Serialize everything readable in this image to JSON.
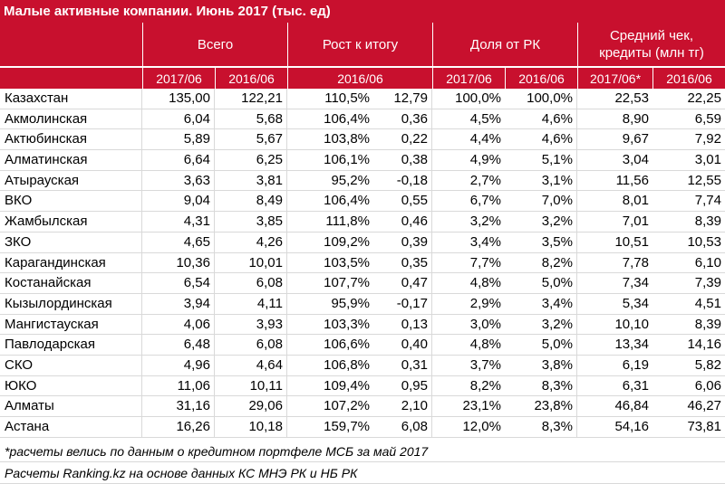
{
  "title": "Малые активные компании. Июнь 2017 (тыс. ед)",
  "groups": {
    "total": "Всего",
    "growth": "Рост к итогу",
    "share": "Доля от РК",
    "avg": "Средний чек, кредиты (млн тг)"
  },
  "subheaders": {
    "total_a": "2017/06",
    "total_b": "2016/06",
    "growth": "2016/06",
    "share_a": "2017/06",
    "share_b": "2016/06",
    "avg_a": "2017/06*",
    "avg_b": "2016/06"
  },
  "rows": [
    [
      "Казахстан",
      "135,00",
      "122,21",
      "110,5%",
      "12,79",
      "100,0%",
      "100,0%",
      "22,53",
      "22,25"
    ],
    [
      "Акмолинская",
      "6,04",
      "5,68",
      "106,4%",
      "0,36",
      "4,5%",
      "4,6%",
      "8,90",
      "6,59"
    ],
    [
      "Актюбинская",
      "5,89",
      "5,67",
      "103,8%",
      "0,22",
      "4,4%",
      "4,6%",
      "9,67",
      "7,92"
    ],
    [
      "Алматинская",
      "6,64",
      "6,25",
      "106,1%",
      "0,38",
      "4,9%",
      "5,1%",
      "3,04",
      "3,01"
    ],
    [
      "Атырауская",
      "3,63",
      "3,81",
      "95,2%",
      "-0,18",
      "2,7%",
      "3,1%",
      "11,56",
      "12,55"
    ],
    [
      "ВКО",
      "9,04",
      "8,49",
      "106,4%",
      "0,55",
      "6,7%",
      "7,0%",
      "8,01",
      "7,74"
    ],
    [
      "Жамбылская",
      "4,31",
      "3,85",
      "111,8%",
      "0,46",
      "3,2%",
      "3,2%",
      "7,01",
      "8,39"
    ],
    [
      "ЗКО",
      "4,65",
      "4,26",
      "109,2%",
      "0,39",
      "3,4%",
      "3,5%",
      "10,51",
      "10,53"
    ],
    [
      "Карагандинская",
      "10,36",
      "10,01",
      "103,5%",
      "0,35",
      "7,7%",
      "8,2%",
      "7,78",
      "6,10"
    ],
    [
      "Костанайская",
      "6,54",
      "6,08",
      "107,7%",
      "0,47",
      "4,8%",
      "5,0%",
      "7,34",
      "7,39"
    ],
    [
      "Кызылординская",
      "3,94",
      "4,11",
      "95,9%",
      "-0,17",
      "2,9%",
      "3,4%",
      "5,34",
      "4,51"
    ],
    [
      "Мангистауская",
      "4,06",
      "3,93",
      "103,3%",
      "0,13",
      "3,0%",
      "3,2%",
      "10,10",
      "8,39"
    ],
    [
      "Павлодарская",
      "6,48",
      "6,08",
      "106,6%",
      "0,40",
      "4,8%",
      "5,0%",
      "13,34",
      "14,16"
    ],
    [
      "СКО",
      "4,96",
      "4,64",
      "106,8%",
      "0,31",
      "3,7%",
      "3,8%",
      "6,19",
      "5,82"
    ],
    [
      "ЮКО",
      "11,06",
      "10,11",
      "109,4%",
      "0,95",
      "8,2%",
      "8,3%",
      "6,31",
      "6,06"
    ],
    [
      "Алматы",
      "31,16",
      "29,06",
      "107,2%",
      "2,10",
      "23,1%",
      "23,8%",
      "46,84",
      "46,27"
    ],
    [
      "Астана",
      "16,26",
      "10,18",
      "159,7%",
      "6,08",
      "12,0%",
      "8,3%",
      "54,16",
      "73,81"
    ]
  ],
  "footnotes": {
    "note1": "*расчеты велись по данным о кредитном портфеле МСБ за май 2017",
    "note2": "Расчеты Ranking.kz на основе данных КС МНЭ РК и НБ РК"
  },
  "colors": {
    "header": "#c8102e",
    "header_text": "#ffffff",
    "grid": "#d9d9d9"
  }
}
